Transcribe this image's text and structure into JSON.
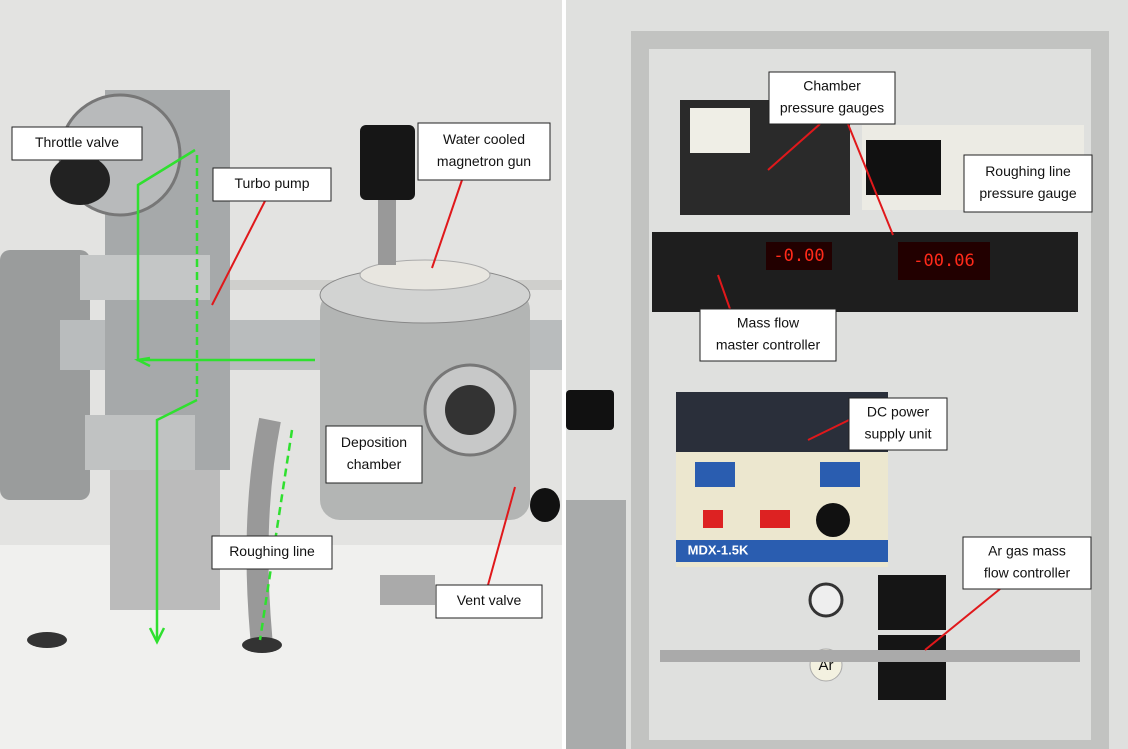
{
  "left_panel": {
    "labels": [
      {
        "lines": [
          "Throttle valve"
        ]
      },
      {
        "lines": [
          "Turbo pump"
        ]
      },
      {
        "lines": [
          "Water cooled",
          "magnetron gun"
        ]
      },
      {
        "lines": [
          "Deposition",
          "chamber"
        ]
      },
      {
        "lines": [
          "Roughing line"
        ]
      },
      {
        "lines": [
          "Vent valve"
        ]
      }
    ]
  },
  "right_panel": {
    "labels": [
      {
        "lines": [
          "Chamber",
          "pressure gauges"
        ]
      },
      {
        "lines": [
          "Roughing line",
          "pressure gauge"
        ]
      },
      {
        "lines": [
          "Mass flow",
          "master controller"
        ]
      },
      {
        "lines": [
          "DC power",
          "supply unit"
        ]
      },
      {
        "lines": [
          "Ar gas mass",
          "flow controller"
        ]
      }
    ]
  },
  "device_text": {
    "flow_display": "-0.00",
    "pressure_display": "-00.06",
    "power_supply_model": "MDX-1.5K",
    "gas_tag": "Ar"
  }
}
